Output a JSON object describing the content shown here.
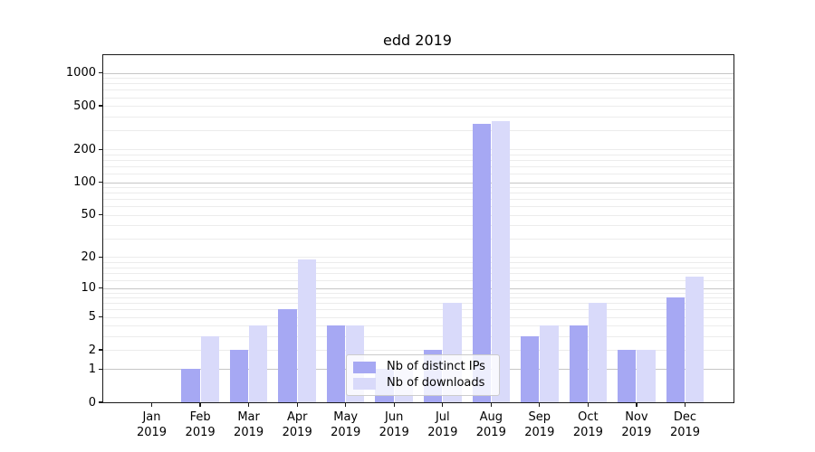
{
  "title": "edd 2019",
  "chart_data": {
    "type": "bar",
    "title": "edd 2019",
    "xlabel": "",
    "ylabel": "",
    "yscale": "log1p",
    "ylim": [
      0,
      1450
    ],
    "grid": "horizontal",
    "categories": [
      "Jan 2019",
      "Feb 2019",
      "Mar 2019",
      "Apr 2019",
      "May 2019",
      "Jun 2019",
      "Jul 2019",
      "Aug 2019",
      "Sep 2019",
      "Oct 2019",
      "Nov 2019",
      "Dec 2019"
    ],
    "series": [
      {
        "name": "Nb of distinct IPs",
        "color": "#a6a8f3",
        "values": [
          0,
          1,
          2,
          6,
          4,
          1,
          2,
          345,
          3,
          4,
          2,
          8
        ]
      },
      {
        "name": "Nb of downloads",
        "color": "#d9dafa",
        "values": [
          0,
          3,
          4,
          19,
          4,
          1,
          7,
          365,
          4,
          7,
          2,
          13
        ]
      }
    ],
    "y_ticks": [
      0,
      1,
      2,
      5,
      10,
      20,
      50,
      100,
      200,
      500,
      1000
    ],
    "gridlines_major": [
      1,
      10,
      100,
      1000
    ],
    "gridlines_minor": [
      2,
      3,
      4,
      5,
      6,
      7,
      8,
      9,
      12,
      14,
      16,
      18,
      20,
      30,
      40,
      50,
      60,
      70,
      80,
      90,
      120,
      140,
      160,
      180,
      200,
      300,
      400,
      500,
      600,
      700,
      800,
      900
    ],
    "legend_position": "lower center"
  },
  "colors": {
    "background": "#ffffff",
    "axis": "#1a1a1a",
    "major_grid": "#c6c6c6",
    "minor_grid": "#ececec",
    "series_dark": "#a6a8f3",
    "series_light": "#d9dafa"
  }
}
